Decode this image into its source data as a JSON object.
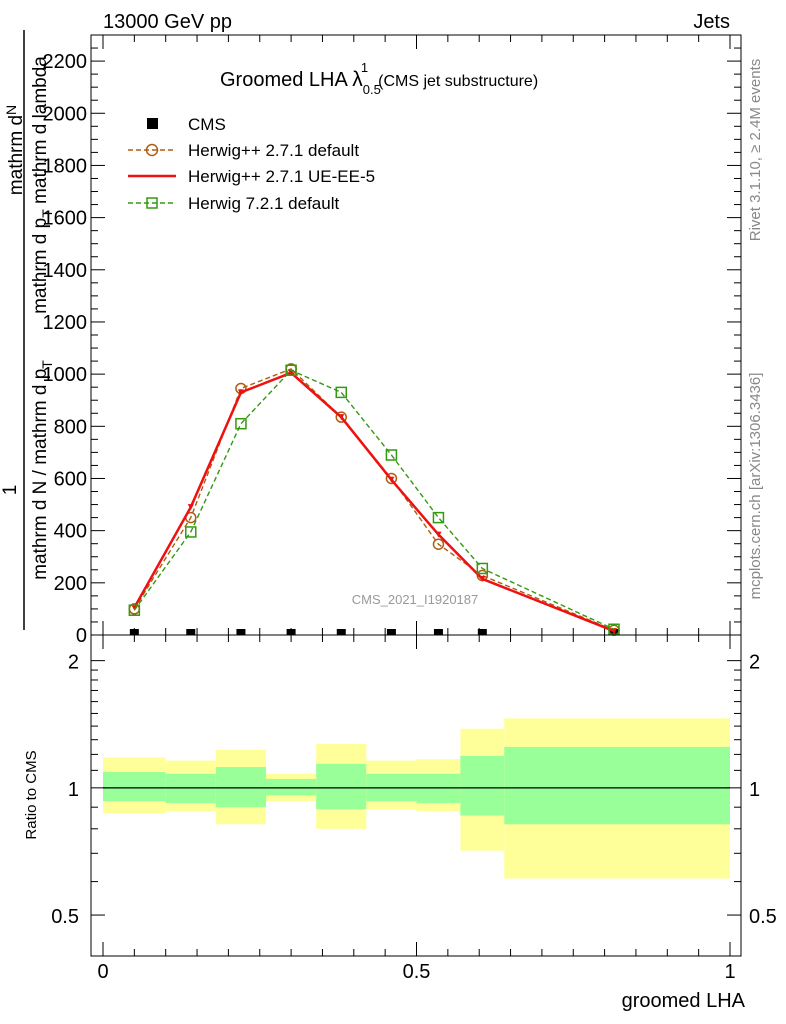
{
  "header": {
    "left": "13000 GeV pp",
    "right": "Jets"
  },
  "side": {
    "rivet": "Rivet 3.1.10, ≥ 2.4M events",
    "mcplots": "mcplots.cern.ch [arXiv:1306.3436]"
  },
  "chart_data": {
    "type": "line",
    "title_main": "Groomed LHA",
    "title_lambda": "λ",
    "title_sup": "1",
    "title_sub": "0.5",
    "title_extra": "(CMS jet substructure)",
    "watermark": "CMS_2021_I1920187",
    "ylabel_top": "mathrm d",
    "ylabel_top_N": "N",
    "ylabel_top2": "mathrm d p",
    "ylabel_top2_T": "T",
    "ylabel_top3": " mathrm d lambda",
    "ylabel_one": "1",
    "ylabel_bottom": "mathrm d N / mathrm d p",
    "ylabel_bottom_T": "T",
    "xlabel": "groomed LHA",
    "ratio_ylabel": "Ratio to CMS",
    "xlim": [
      0,
      1
    ],
    "ylim": [
      0,
      2300
    ],
    "ratio_ylim": [
      0.4,
      2.3
    ],
    "x_ticks": [
      {
        "v": 0,
        "label": "0"
      },
      {
        "v": 0.5,
        "label": "0.5"
      },
      {
        "v": 1,
        "label": "1"
      }
    ],
    "y_ticks": [
      {
        "v": 0,
        "label": "0"
      },
      {
        "v": 200,
        "label": "200"
      },
      {
        "v": 400,
        "label": "400"
      },
      {
        "v": 600,
        "label": "600"
      },
      {
        "v": 800,
        "label": "800"
      },
      {
        "v": 1000,
        "label": "1000"
      },
      {
        "v": 1200,
        "label": "1200"
      },
      {
        "v": 1400,
        "label": "1400"
      },
      {
        "v": 1600,
        "label": "1600"
      },
      {
        "v": 1800,
        "label": "1800"
      },
      {
        "v": 2000,
        "label": "2000"
      },
      {
        "v": 2200,
        "label": "2200"
      }
    ],
    "ratio_ticks": [
      {
        "v": 0.5,
        "label": "0.5"
      },
      {
        "v": 1,
        "label": "1"
      },
      {
        "v": 2,
        "label": "2"
      }
    ],
    "x": [
      0.05,
      0.14,
      0.22,
      0.3,
      0.38,
      0.46,
      0.535,
      0.605,
      0.815
    ],
    "bin_edges": [
      0,
      0.1,
      0.18,
      0.26,
      0.34,
      0.42,
      0.5,
      0.57,
      0.64,
      1.0
    ],
    "series": [
      {
        "name": "CMS",
        "color": "#000000",
        "marker": "square-filled",
        "values": [
          0,
          0,
          0,
          0,
          0,
          0,
          0,
          0,
          0
        ]
      },
      {
        "name": "Herwig++ 2.7.1 default",
        "color": "#b05c10",
        "marker": "circle-open",
        "dash": true,
        "values": [
          100,
          450,
          945,
          1020,
          835,
          600,
          348,
          228,
          18
        ]
      },
      {
        "name": "Herwig++ 2.7.1 UE-EE-5",
        "color": "#ee1111",
        "marker": "triangle-down",
        "dash": false,
        "values": [
          105,
          490,
          930,
          1005,
          835,
          595,
          385,
          215,
          15
        ]
      },
      {
        "name": "Herwig 7.2.1 default",
        "color": "#339911",
        "marker": "square-open",
        "dash": true,
        "values": [
          95,
          395,
          810,
          1015,
          930,
          690,
          450,
          255,
          22
        ]
      }
    ],
    "ratio_bands": {
      "yellow_color": "#ffff99",
      "green_color": "#99ff99",
      "bins": [
        {
          "x0": 0.0,
          "x1": 0.1,
          "ylo": 0.87,
          "yhi": 1.18,
          "glo": 0.93,
          "ghi": 1.09
        },
        {
          "x0": 0.1,
          "x1": 0.18,
          "ylo": 0.88,
          "yhi": 1.16,
          "glo": 0.92,
          "ghi": 1.08
        },
        {
          "x0": 0.18,
          "x1": 0.26,
          "ylo": 0.82,
          "yhi": 1.23,
          "glo": 0.9,
          "ghi": 1.12
        },
        {
          "x0": 0.26,
          "x1": 0.34,
          "ylo": 0.93,
          "yhi": 1.08,
          "glo": 0.96,
          "ghi": 1.05
        },
        {
          "x0": 0.34,
          "x1": 0.42,
          "ylo": 0.8,
          "yhi": 1.27,
          "glo": 0.89,
          "ghi": 1.14
        },
        {
          "x0": 0.42,
          "x1": 0.5,
          "ylo": 0.89,
          "yhi": 1.16,
          "glo": 0.93,
          "ghi": 1.08
        },
        {
          "x0": 0.5,
          "x1": 0.57,
          "ylo": 0.88,
          "yhi": 1.17,
          "glo": 0.92,
          "ghi": 1.08
        },
        {
          "x0": 0.57,
          "x1": 0.64,
          "ylo": 0.71,
          "yhi": 1.38,
          "glo": 0.86,
          "ghi": 1.19
        },
        {
          "x0": 0.64,
          "x1": 1.0,
          "ylo": 0.61,
          "yhi": 1.46,
          "glo": 0.82,
          "ghi": 1.25
        }
      ]
    }
  }
}
